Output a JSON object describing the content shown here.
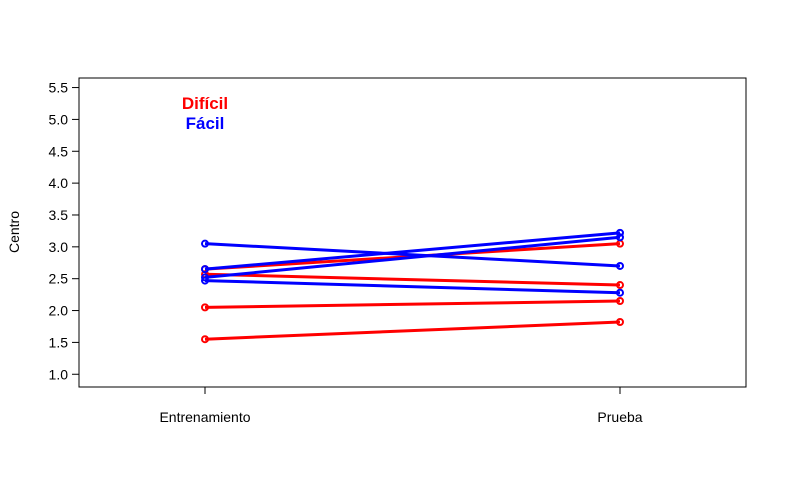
{
  "chart_data": {
    "type": "line",
    "title": "",
    "xlabel": "",
    "ylabel": "Centro",
    "categories": [
      "Entrenamiento",
      "Prueba"
    ],
    "ylim": [
      0.8,
      5.65
    ],
    "yticks": [
      "1.0",
      "1.5",
      "2.0",
      "2.5",
      "3.0",
      "3.5",
      "4.0",
      "4.5",
      "5.0",
      "5.5"
    ],
    "grid": false,
    "legend": {
      "position": "top-left",
      "entries": [
        {
          "label": "Difícil",
          "color": "#ff0000"
        },
        {
          "label": "Fácil",
          "color": "#0000ff"
        }
      ]
    },
    "series": [
      {
        "group": "Difícil",
        "color": "#ff0000",
        "values": [
          1.55,
          1.82
        ]
      },
      {
        "group": "Difícil",
        "color": "#ff0000",
        "values": [
          2.05,
          2.15
        ]
      },
      {
        "group": "Difícil",
        "color": "#ff0000",
        "values": [
          2.57,
          2.4
        ]
      },
      {
        "group": "Difícil",
        "color": "#ff0000",
        "values": [
          2.65,
          3.05
        ]
      },
      {
        "group": "Fácil",
        "color": "#0000ff",
        "values": [
          3.05,
          2.7
        ]
      },
      {
        "group": "Fácil",
        "color": "#0000ff",
        "values": [
          2.47,
          2.28
        ]
      },
      {
        "group": "Fácil",
        "color": "#0000ff",
        "values": [
          2.52,
          3.15
        ]
      },
      {
        "group": "Fácil",
        "color": "#0000ff",
        "values": [
          2.65,
          3.22
        ]
      }
    ]
  }
}
